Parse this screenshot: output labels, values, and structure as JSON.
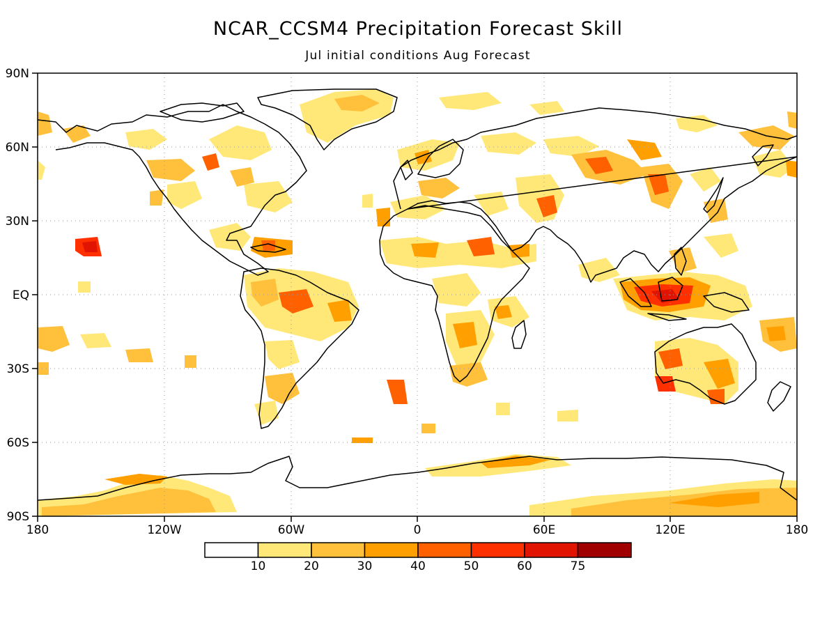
{
  "title": "NCAR_CCSM4 Precipitation Forecast Skill",
  "subtitle": "Jul initial conditions   Aug Forecast",
  "lat_labels": [
    "90N",
    "60N",
    "30N",
    "EQ",
    "30S",
    "60S",
    "90S"
  ],
  "lon_labels": [
    "180",
    "120W",
    "60W",
    "0",
    "60E",
    "120E",
    "180"
  ],
  "colorbar": {
    "labels": [
      "10",
      "20",
      "30",
      "40",
      "50",
      "60",
      "75"
    ],
    "colors": [
      "#ffffff",
      "#ffe878",
      "#ffc03c",
      "#ffa000",
      "#ff6000",
      "#ff3000",
      "#e01400",
      "#a00000"
    ]
  },
  "colors": {
    "coast": "#000000",
    "grid": "#9a9a9a"
  }
}
